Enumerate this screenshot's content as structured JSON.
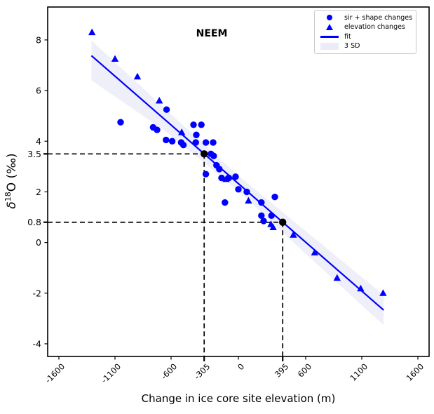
{
  "chart_data": {
    "type": "scatter",
    "title": "NEEM",
    "xlabel": "Change in ice core site elevation (m)",
    "ylabel": "δ18O (‰)",
    "ylabel_parts": {
      "symbol": "δ",
      "superscript": "18",
      "rest": "O (‰)"
    },
    "xlim": [
      -1700,
      1700
    ],
    "ylim": [
      -4.5,
      9.3
    ],
    "grid": false,
    "legend_position": "upper right",
    "colors": {
      "accent": "#0000ff",
      "band": "#dcdcf2",
      "marked": "#000000",
      "axis": "#000000"
    },
    "xticks": [
      {
        "value": -1600,
        "label": "-1600",
        "emphasis": false
      },
      {
        "value": -1100,
        "label": "-1100",
        "emphasis": false
      },
      {
        "value": -600,
        "label": "-600",
        "emphasis": false
      },
      {
        "value": -305,
        "label": "-305",
        "emphasis": true
      },
      {
        "value": 0,
        "label": "0",
        "emphasis": false
      },
      {
        "value": 395,
        "label": "395",
        "emphasis": true
      },
      {
        "value": 600,
        "label": "600",
        "emphasis": false
      },
      {
        "value": 1100,
        "label": "1100",
        "emphasis": false
      },
      {
        "value": 1600,
        "label": "1600",
        "emphasis": false
      }
    ],
    "yticks": [
      {
        "value": 8,
        "label": "8",
        "emphasis": false
      },
      {
        "value": 6,
        "label": "6",
        "emphasis": false
      },
      {
        "value": 4,
        "label": "4",
        "emphasis": false
      },
      {
        "value": 3.5,
        "label": "3.5",
        "emphasis": true
      },
      {
        "value": 2,
        "label": "2",
        "emphasis": false
      },
      {
        "value": 0.8,
        "label": "0.8",
        "emphasis": true
      },
      {
        "value": 0,
        "label": "0",
        "emphasis": false
      },
      {
        "value": -2,
        "label": "-2",
        "emphasis": false
      },
      {
        "value": -4,
        "label": "-4",
        "emphasis": false
      }
    ],
    "series": [
      {
        "name": "sir + shape changes",
        "marker": "circle",
        "color": "#0000ff",
        "points": [
          [
            -1050,
            4.75
          ],
          [
            -760,
            4.55
          ],
          [
            -725,
            4.45
          ],
          [
            -640,
            5.25
          ],
          [
            -645,
            4.05
          ],
          [
            -590,
            4.0
          ],
          [
            -510,
            3.95
          ],
          [
            -490,
            3.85
          ],
          [
            -400,
            4.65
          ],
          [
            -330,
            4.65
          ],
          [
            -375,
            4.25
          ],
          [
            -380,
            3.95
          ],
          [
            -290,
            3.95
          ],
          [
            -225,
            3.95
          ],
          [
            -245,
            3.5
          ],
          [
            -220,
            3.42
          ],
          [
            -195,
            3.05
          ],
          [
            -170,
            2.9
          ],
          [
            -290,
            2.7
          ],
          [
            -150,
            2.55
          ],
          [
            -85,
            2.55
          ],
          [
            -25,
            2.6
          ],
          [
            0,
            2.1
          ],
          [
            75,
            2.0
          ],
          [
            -120,
            1.58
          ],
          [
            205,
            1.58
          ],
          [
            325,
            1.8
          ],
          [
            205,
            1.06
          ],
          [
            295,
            1.06
          ],
          [
            225,
            0.85
          ]
        ]
      },
      {
        "name": "elevation changes",
        "marker": "triangle",
        "color": "#0000ff",
        "points": [
          [
            -1305,
            8.3
          ],
          [
            -1100,
            7.25
          ],
          [
            -900,
            6.55
          ],
          [
            -705,
            5.6
          ],
          [
            -505,
            4.35
          ],
          [
            -110,
            2.5
          ],
          [
            90,
            1.65
          ],
          [
            290,
            0.72
          ],
          [
            310,
            0.6
          ],
          [
            490,
            0.3
          ],
          [
            680,
            -0.4
          ],
          [
            880,
            -1.4
          ],
          [
            1090,
            -1.82
          ],
          [
            1290,
            -2.0
          ]
        ]
      }
    ],
    "fit": {
      "name": "fit",
      "color": "#0000ff",
      "points": [
        [
          -1310,
          7.38
        ],
        [
          1295,
          -2.67
        ]
      ]
    },
    "band": {
      "name": "3 SD",
      "color": "#dcdcf2",
      "opacity": 0.45,
      "upper": [
        [
          -1310,
          7.98
        ],
        [
          -650,
          5.27
        ],
        [
          0,
          2.64
        ],
        [
          650,
          0.27
        ],
        [
          1295,
          -2.08
        ]
      ],
      "lower": [
        [
          -1310,
          6.4
        ],
        [
          -650,
          4.4
        ],
        [
          0,
          2.04
        ],
        [
          650,
          -0.65
        ],
        [
          1295,
          -3.27
        ]
      ]
    },
    "marked_points": {
      "color": "#000000",
      "points": [
        [
          -305,
          3.5
        ],
        [
          395,
          0.8
        ]
      ]
    },
    "legend": {
      "items": [
        {
          "label": "sir + shape changes",
          "marker": "circle"
        },
        {
          "label": "elevation changes",
          "marker": "triangle"
        },
        {
          "label": "fit",
          "marker": "line"
        },
        {
          "label": "3 SD",
          "marker": "patch"
        }
      ]
    }
  }
}
